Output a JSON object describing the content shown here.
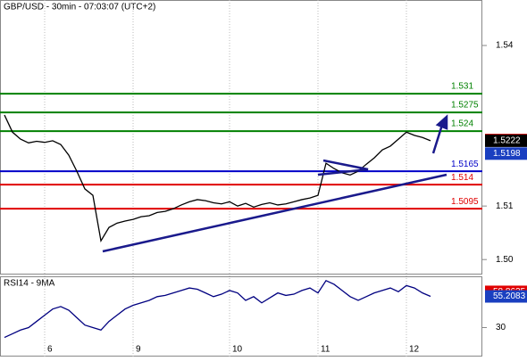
{
  "chart_data": [
    {
      "type": "line",
      "title": "GBP/USD - 30min - 07:03:07 (UTC+2)",
      "color": "#000000",
      "values": [
        1.527,
        1.5238,
        1.5225,
        1.5218,
        1.5221,
        1.5219,
        1.5222,
        1.5215,
        1.5195,
        1.5165,
        1.5132,
        1.512,
        1.5035,
        1.506,
        1.5068,
        1.5072,
        1.5075,
        1.508,
        1.5082,
        1.5088,
        1.509,
        1.5095,
        1.5102,
        1.5108,
        1.5112,
        1.511,
        1.5106,
        1.5104,
        1.5108,
        1.51,
        1.5105,
        1.5098,
        1.5103,
        1.5106,
        1.5102,
        1.5104,
        1.5108,
        1.5112,
        1.5115,
        1.512,
        1.518,
        1.517,
        1.5162,
        1.5158,
        1.5165,
        1.5178,
        1.519,
        1.5205,
        1.5212,
        1.5225,
        1.5238,
        1.5232,
        1.5228,
        1.5222
      ],
      "ylim": [
        1.4972,
        1.5485
      ],
      "yticks": [
        {
          "value": 1.5,
          "label": "1.50"
        },
        1.51,
        1.54
      ],
      "xticks": [
        {
          "value": 5,
          "label": "6"
        },
        {
          "value": 16,
          "label": "9"
        },
        {
          "value": 28,
          "label": "10"
        },
        {
          "value": 39,
          "label": "11"
        },
        {
          "value": 50,
          "label": "12"
        }
      ],
      "levels": [
        {
          "value": 1.531,
          "color": "#008000"
        },
        {
          "value": 1.5275,
          "color": "#008000"
        },
        {
          "value": 1.524,
          "color": "#008000"
        },
        {
          "value": 1.5165,
          "color": "#0000c8"
        },
        {
          "value": 1.514,
          "color": "#e00000"
        },
        {
          "value": 1.5095,
          "color": "#e00000"
        }
      ],
      "price_labels": [
        {
          "value": 1.52233,
          "color": "#e00000"
        },
        {
          "value": 1.5222,
          "color": "#000000"
        },
        {
          "value": 1.5198,
          "color": "#1a3fc0"
        }
      ]
    },
    {
      "type": "line",
      "title": "RSI14 - 9MA",
      "color": "#000080",
      "values": [
        22,
        25,
        28,
        30,
        35,
        40,
        45,
        47,
        44,
        38,
        32,
        30,
        28,
        35,
        40,
        45,
        48,
        50,
        52,
        55,
        56,
        58,
        60,
        62,
        61,
        58,
        55,
        57,
        60,
        58,
        52,
        55,
        50,
        54,
        58,
        56,
        57,
        60,
        62,
        58,
        68,
        65,
        60,
        55,
        52,
        55,
        58,
        60,
        62,
        59,
        64,
        62,
        58,
        55.2083
      ],
      "ylim": [
        8,
        70
      ],
      "yticks": [
        30
      ],
      "value_labels": [
        {
          "value": 58.8625,
          "color": "#e00000"
        },
        {
          "value": 55.2083,
          "color": "#1a3fc0"
        }
      ]
    }
  ]
}
